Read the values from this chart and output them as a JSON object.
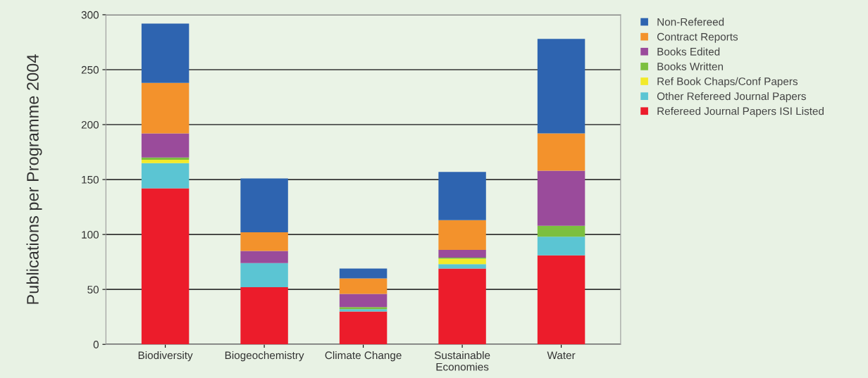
{
  "chart_data": {
    "type": "bar",
    "stacked": true,
    "ylabel": "Publications per Programme 2004",
    "categories": [
      "Biodiversity",
      "Biogeochemistry",
      "Climate Change",
      "Sustainable\nEconomies",
      "Water"
    ],
    "series": [
      {
        "name": "Refereed Journal Papers ISI Listed",
        "color": "#ec1c2b",
        "values": [
          142,
          52,
          30,
          69,
          81
        ]
      },
      {
        "name": "Other Refereed Journal Papers",
        "color": "#5bc5d3",
        "values": [
          23,
          22,
          2,
          4,
          17
        ]
      },
      {
        "name": "Ref Book Chaps/Conf Papers",
        "color": "#f2ea2a",
        "values": [
          3,
          0,
          0,
          5,
          0
        ]
      },
      {
        "name": "Books Written",
        "color": "#7cbf3f",
        "values": [
          2,
          0,
          2,
          1,
          10
        ]
      },
      {
        "name": "Books Edited",
        "color": "#9a4b9b",
        "values": [
          22,
          11,
          12,
          7,
          50
        ]
      },
      {
        "name": "Contract Reports",
        "color": "#f3922c",
        "values": [
          46,
          17,
          14,
          27,
          34
        ]
      },
      {
        "name": "Non-Refereed",
        "color": "#2e64b0",
        "values": [
          54,
          49,
          9,
          44,
          86
        ]
      }
    ],
    "ylim": [
      0,
      300
    ],
    "yticks": [
      0,
      50,
      100,
      150,
      200,
      250,
      300
    ],
    "grid": "y",
    "legend": "top right"
  }
}
